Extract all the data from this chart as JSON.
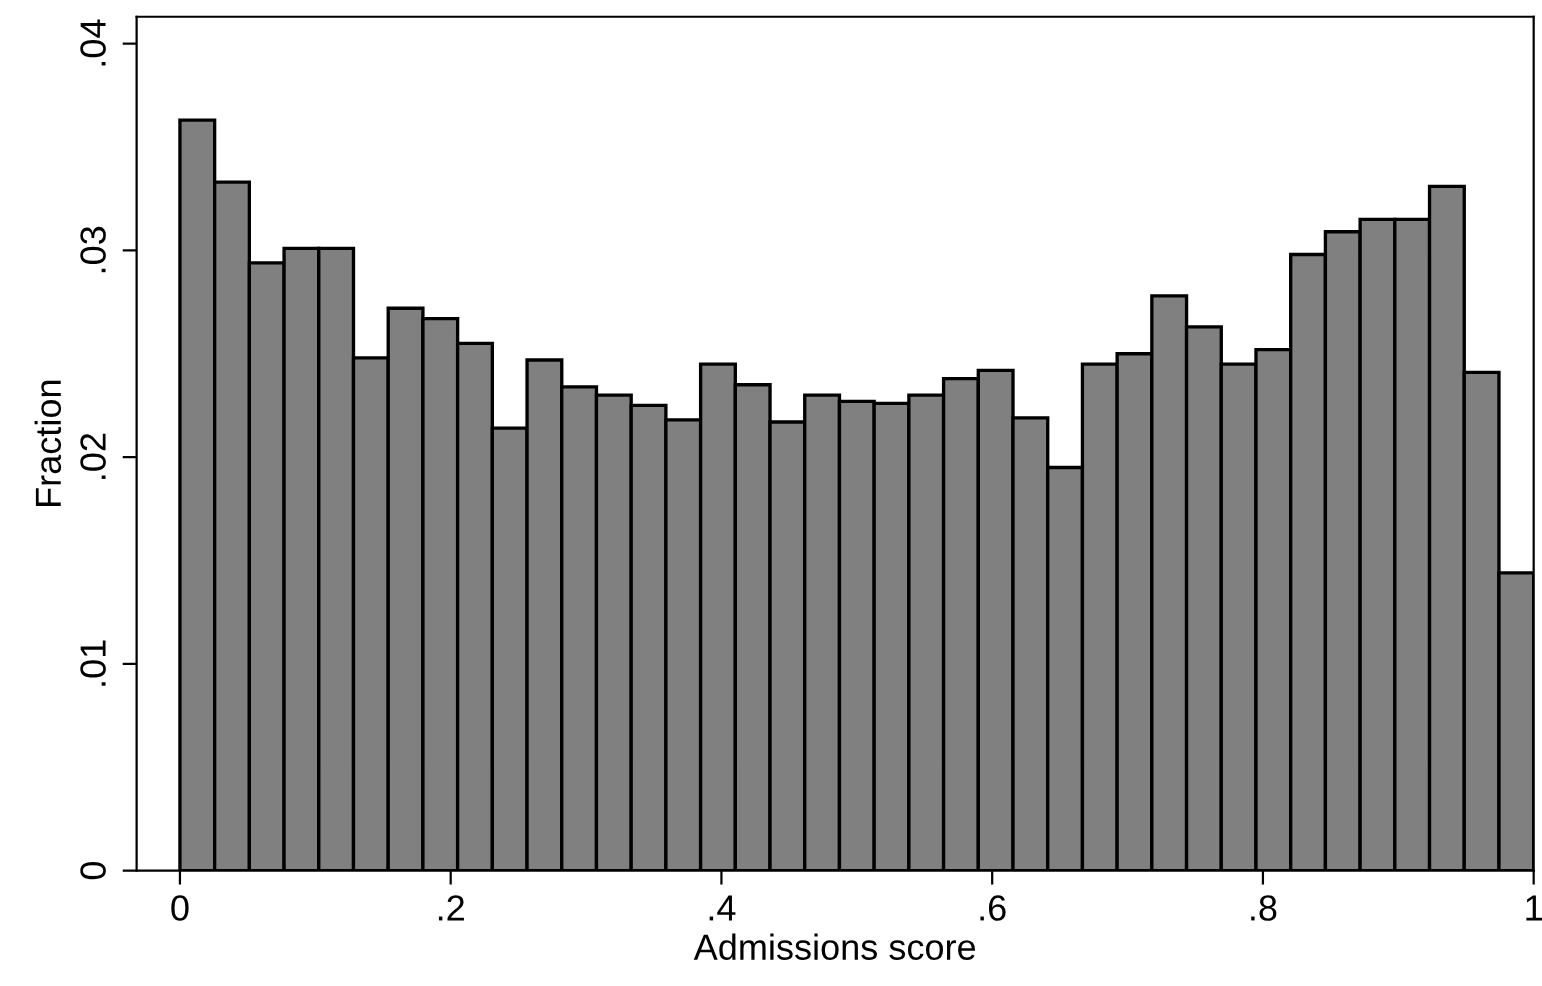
{
  "chart_data": {
    "type": "histogram",
    "xlabel": "Admissions score",
    "ylabel": "Fraction",
    "color": "#808080",
    "bins": [
      0,
      0.025641,
      0.051282,
      0.076923,
      0.102564,
      0.128205,
      0.153846,
      0.179487,
      0.205128,
      0.230769,
      0.25641,
      0.282051,
      0.307692,
      0.333333,
      0.358974,
      0.384615,
      0.410256,
      0.435897,
      0.461538,
      0.487179,
      0.512821,
      0.538462,
      0.564103,
      0.589744,
      0.615385,
      0.641026,
      0.666667,
      0.692308,
      0.717949,
      0.74359,
      0.769231,
      0.794872,
      0.820513,
      0.846154,
      0.871795,
      0.897436,
      0.923077,
      0.948718,
      0.974359,
      1
    ],
    "values": [
      0.0363,
      0.0333,
      0.0294,
      0.0301,
      0.0301,
      0.0248,
      0.0272,
      0.0267,
      0.0255,
      0.0214,
      0.0247,
      0.0234,
      0.023,
      0.0225,
      0.0218,
      0.0245,
      0.0235,
      0.0217,
      0.023,
      0.0227,
      0.0226,
      0.023,
      0.0238,
      0.0242,
      0.0219,
      0.0195,
      0.0245,
      0.025,
      0.0278,
      0.0263,
      0.0245,
      0.0252,
      0.0298,
      0.0309,
      0.0315,
      0.0315,
      0.0331,
      0.0241,
      0.0144
    ],
    "xlim": [
      -0.032,
      1.0
    ],
    "ylim": [
      0,
      0.0413
    ],
    "xticks": [
      0,
      {
        "value": 0.2,
        "label": ".2"
      },
      {
        "value": 0.4,
        "label": ".4"
      },
      {
        "value": 0.6,
        "label": ".6"
      },
      {
        "value": 0.8,
        "label": ".8"
      },
      1
    ],
    "yticks": [
      0,
      {
        "value": 0.01,
        "label": ".01"
      },
      {
        "value": 0.02,
        "label": ".02"
      },
      {
        "value": 0.03,
        "label": ".03"
      },
      {
        "value": 0.04,
        "label": ".04"
      }
    ],
    "grid": false,
    "legend": false
  }
}
